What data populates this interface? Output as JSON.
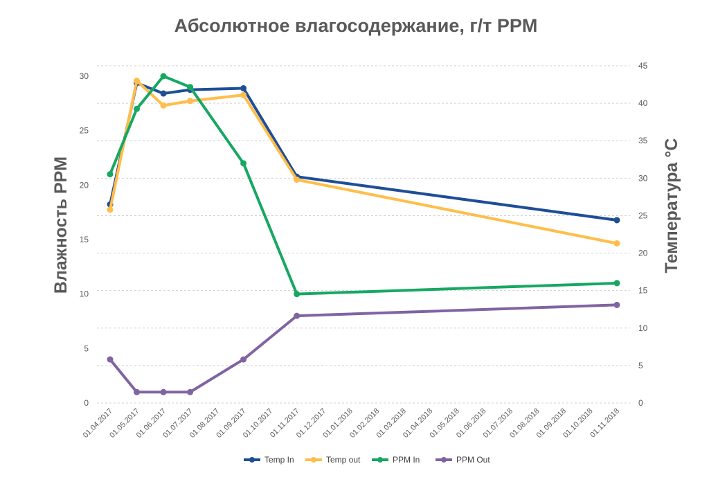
{
  "chart_data": {
    "type": "line",
    "title": "Абсолютное влагосодержание, г/т PPM",
    "ylabel_left": "Влажность PPM",
    "ylabel_right": "Температура °C",
    "ylim_left": [
      0,
      30
    ],
    "yticks_left": [
      "0",
      "5",
      "10",
      "15",
      "20",
      "25",
      "30"
    ],
    "ylim_right": [
      0,
      45
    ],
    "yticks_right": [
      "0",
      "5",
      "10",
      "15",
      "20",
      "25",
      "30",
      "35",
      "40",
      "45"
    ],
    "grid": true,
    "legend_position": "bottom",
    "categories": [
      "01.04.2017",
      "01.05.2017",
      "01.06.2017",
      "01.07.2017",
      "01.08.2017",
      "01.09.2017",
      "01.10.2017",
      "01.11.2017",
      "01.12.2017",
      "01.01.2018",
      "01.02.2018",
      "01.03.2018",
      "01.04.2018",
      "01.05.2018",
      "01.06.2018",
      "01.07.2018",
      "01.08.2018",
      "01.09.2018",
      "01.10.2018",
      "01.11.2018"
    ],
    "series": [
      {
        "name": "Temp In",
        "axis": "right",
        "color": "#1f4e97",
        "points": [
          {
            "x": "01.04.2017",
            "y": 26.5
          },
          {
            "x": "01.05.2017",
            "y": 42.7
          },
          {
            "x": "01.06.2017",
            "y": 41.3
          },
          {
            "x": "01.07.2017",
            "y": 41.8
          },
          {
            "x": "01.09.2017",
            "y": 42.0
          },
          {
            "x": "01.11.2017",
            "y": 30.2
          },
          {
            "x": "01.11.2018",
            "y": 24.4
          }
        ]
      },
      {
        "name": "Temp out",
        "axis": "right",
        "color": "#ffbd4a",
        "points": [
          {
            "x": "01.04.2017",
            "y": 25.8
          },
          {
            "x": "01.05.2017",
            "y": 43.0
          },
          {
            "x": "01.06.2017",
            "y": 39.7
          },
          {
            "x": "01.07.2017",
            "y": 40.3
          },
          {
            "x": "01.09.2017",
            "y": 41.1
          },
          {
            "x": "01.11.2017",
            "y": 29.8
          },
          {
            "x": "01.11.2018",
            "y": 21.3
          }
        ]
      },
      {
        "name": "PPM In",
        "axis": "left",
        "color": "#16a862",
        "points": [
          {
            "x": "01.04.2017",
            "y": 21.0
          },
          {
            "x": "01.05.2017",
            "y": 27.0
          },
          {
            "x": "01.06.2017",
            "y": 30.0
          },
          {
            "x": "01.07.2017",
            "y": 29.0
          },
          {
            "x": "01.09.2017",
            "y": 22.0
          },
          {
            "x": "01.11.2017",
            "y": 10.0
          },
          {
            "x": "01.11.2018",
            "y": 11.0
          }
        ]
      },
      {
        "name": "PPM Out",
        "axis": "left",
        "color": "#8064a2",
        "points": [
          {
            "x": "01.04.2017",
            "y": 4.0
          },
          {
            "x": "01.05.2017",
            "y": 1.0
          },
          {
            "x": "01.06.2017",
            "y": 1.0
          },
          {
            "x": "01.07.2017",
            "y": 1.0
          },
          {
            "x": "01.09.2017",
            "y": 4.0
          },
          {
            "x": "01.11.2017",
            "y": 8.0
          },
          {
            "x": "01.11.2018",
            "y": 9.0
          }
        ]
      }
    ]
  }
}
